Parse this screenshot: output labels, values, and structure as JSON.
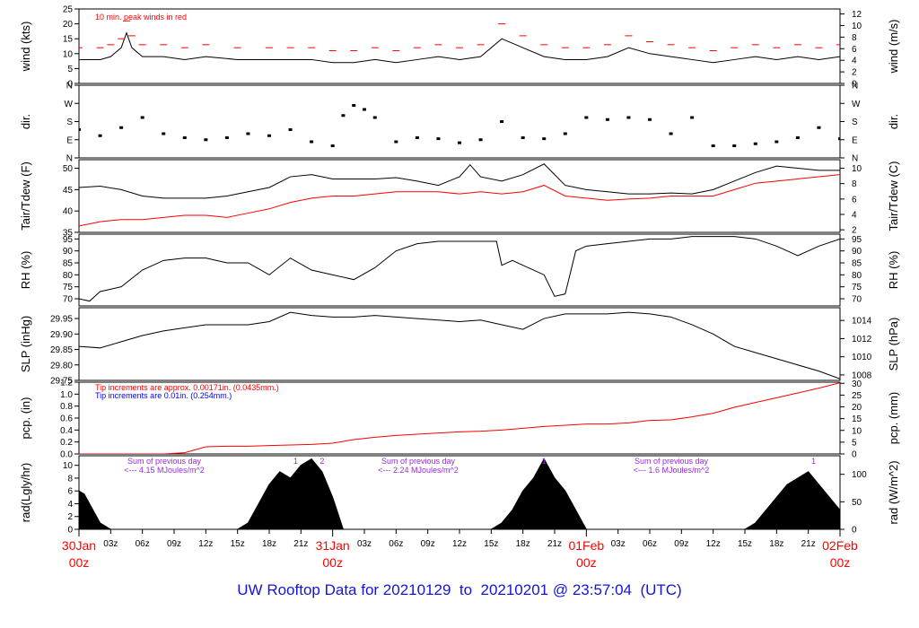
{
  "title": "UW Rooftop Data for 20210129  to  20210201 @ 23:57:04  (UTC)",
  "colors": {
    "main": "#000000",
    "red": "#ff0000",
    "blue": "#0000ff",
    "purple": "#9a2bd8",
    "title": "#1414d8"
  },
  "chart_data": [
    {
      "id": "wind",
      "type": "line",
      "ylabel": "wind (kts)",
      "ylabel_right": "wind (m/s)",
      "ylim": [
        0,
        25
      ],
      "yticks": [
        0,
        5,
        10,
        15,
        20,
        25
      ],
      "ylim_right": [
        0,
        12.86
      ],
      "yticks_right": [
        0,
        2,
        4,
        6,
        8,
        10,
        12
      ],
      "annotations": [
        {
          "text": "10 min. peak winds in red",
          "color": "#ff0000"
        }
      ],
      "series": [
        {
          "color": "#000000",
          "x": [
            0,
            2,
            3,
            4,
            4.5,
            5,
            6,
            8,
            10,
            12,
            15,
            18,
            20,
            22,
            24,
            26,
            28,
            30,
            32,
            34,
            36,
            38,
            40,
            42,
            44,
            46,
            48,
            50,
            52,
            54,
            56,
            58,
            60,
            62,
            64,
            66,
            68,
            70,
            72
          ],
          "y": [
            8,
            8,
            9,
            12,
            17,
            12,
            9,
            9,
            8,
            9,
            8,
            8,
            8,
            8,
            7,
            7,
            8,
            7,
            8,
            9,
            8,
            9,
            15,
            12,
            9,
            8,
            8,
            9,
            12,
            10,
            9,
            8,
            7,
            8,
            9,
            8,
            9,
            8,
            9
          ]
        },
        {
          "color": "#ff0000",
          "style": "dashes",
          "x": [
            0,
            2,
            3,
            4,
            4.5,
            5,
            6,
            8,
            10,
            12,
            15,
            18,
            20,
            22,
            24,
            26,
            28,
            30,
            32,
            34,
            36,
            38,
            40,
            42,
            44,
            46,
            48,
            50,
            52,
            54,
            56,
            58,
            60,
            62,
            64,
            66,
            68,
            70,
            72
          ],
          "y": [
            12,
            12,
            13,
            15,
            21,
            16,
            13,
            13,
            12,
            13,
            12,
            12,
            12,
            12,
            11,
            11,
            12,
            11,
            12,
            13,
            12,
            13,
            20,
            16,
            13,
            12,
            12,
            13,
            16,
            14,
            13,
            12,
            11,
            12,
            13,
            12,
            13,
            12,
            13
          ]
        }
      ]
    },
    {
      "id": "dir",
      "type": "scatter",
      "ylabel": "dir.",
      "ylabel_right": "dir.",
      "ylim": [
        0,
        360
      ],
      "yticks": [
        0,
        90,
        180,
        270,
        360
      ],
      "yticklabels": [
        "N",
        "E",
        "S",
        "W",
        "N"
      ],
      "series": [
        {
          "color": "#000000",
          "x": [
            0,
            2,
            4,
            6,
            8,
            10,
            12,
            14,
            16,
            18,
            20,
            22,
            24,
            25,
            26,
            27,
            28,
            30,
            32,
            34,
            36,
            38,
            40,
            42,
            44,
            46,
            48,
            50,
            52,
            54,
            56,
            58,
            60,
            62,
            64,
            66,
            68,
            70,
            72
          ],
          "y": [
            140,
            110,
            150,
            200,
            120,
            100,
            90,
            100,
            120,
            110,
            140,
            80,
            60,
            210,
            260,
            240,
            200,
            80,
            100,
            95,
            75,
            90,
            180,
            100,
            95,
            120,
            200,
            190,
            200,
            190,
            120,
            200,
            60,
            60,
            70,
            80,
            100,
            150,
            95
          ]
        }
      ]
    },
    {
      "id": "temp",
      "type": "line",
      "ylabel": "Tair/Tdew (F)",
      "ylabel_right": "Tair/Tdew (C)",
      "ylim": [
        35,
        52
      ],
      "yticks": [
        35,
        40,
        45,
        50
      ],
      "ylim_right": [
        1.67,
        11.11
      ],
      "yticks_right": [
        2,
        4,
        6,
        8,
        10
      ],
      "series": [
        {
          "color": "#000000",
          "x": [
            0,
            2,
            4,
            6,
            8,
            10,
            12,
            14,
            16,
            18,
            20,
            22,
            24,
            26,
            28,
            30,
            32,
            34,
            36,
            37,
            38,
            40,
            42,
            44,
            46,
            48,
            50,
            52,
            54,
            56,
            58,
            60,
            62,
            64,
            66,
            68,
            70,
            72
          ],
          "y": [
            45.5,
            45.8,
            45,
            43.5,
            43,
            43,
            43,
            43.5,
            44.5,
            45.5,
            48,
            48.5,
            47.5,
            47.5,
            47.5,
            47.8,
            47,
            46,
            48,
            50.8,
            48,
            47,
            48.5,
            51,
            46,
            45,
            44.5,
            44,
            44,
            44.2,
            44,
            45,
            47,
            49,
            50.5,
            50,
            49.5,
            49.5
          ]
        },
        {
          "color": "#ff0000",
          "x": [
            0,
            2,
            4,
            6,
            8,
            10,
            12,
            14,
            16,
            18,
            20,
            22,
            24,
            26,
            28,
            30,
            32,
            34,
            36,
            38,
            40,
            42,
            44,
            46,
            48,
            50,
            52,
            54,
            56,
            58,
            60,
            62,
            64,
            66,
            68,
            70,
            72
          ],
          "y": [
            36.5,
            37.5,
            38,
            38,
            38.5,
            39,
            39,
            38.5,
            39.5,
            40.5,
            42,
            43,
            43.5,
            43.5,
            44,
            44.5,
            44.5,
            44.5,
            44,
            44.5,
            44,
            44.5,
            46,
            43.5,
            43,
            42.5,
            42.8,
            43,
            43.5,
            43.5,
            43.5,
            45,
            46.5,
            47,
            47.5,
            48,
            48.5
          ]
        }
      ]
    },
    {
      "id": "rh",
      "type": "line",
      "ylabel": "RH (%)",
      "ylabel_right": "RH (%)",
      "ylim": [
        67,
        97
      ],
      "yticks": [
        70,
        75,
        80,
        85,
        90,
        95
      ],
      "series": [
        {
          "color": "#000000",
          "x": [
            0,
            1,
            2,
            3,
            4,
            6,
            8,
            10,
            12,
            14,
            16,
            18,
            20,
            22,
            24,
            26,
            28,
            30,
            32,
            34,
            36,
            38,
            39.5,
            40,
            41,
            42,
            44,
            45,
            46,
            47,
            48,
            50,
            52,
            54,
            56,
            58,
            60,
            62,
            64,
            66,
            68,
            70,
            72
          ],
          "y": [
            70,
            69,
            73,
            74,
            75,
            82,
            86,
            87,
            87,
            85,
            85,
            80,
            87,
            82,
            80,
            78,
            83,
            90,
            93,
            94,
            94,
            94,
            94,
            84,
            86,
            84,
            80,
            71,
            72,
            90,
            92,
            93,
            94,
            95,
            95,
            96,
            96,
            96,
            95,
            92,
            88,
            92,
            95
          ]
        }
      ]
    },
    {
      "id": "slp",
      "type": "line",
      "ylabel": "SLP (inHg)",
      "ylabel_right": "SLP (hPa)",
      "ylim": [
        29.75,
        29.985
      ],
      "yticks": [
        29.75,
        29.8,
        29.85,
        29.9,
        29.95
      ],
      "yticklabels": [
        "29.75",
        "29.80",
        "29.85",
        "29.90",
        "29.95"
      ],
      "ylim_right": [
        1007.4,
        1015.4
      ],
      "yticks_right": [
        1008,
        1010,
        1012,
        1014
      ],
      "series": [
        {
          "color": "#000000",
          "x": [
            0,
            2,
            4,
            6,
            8,
            10,
            12,
            14,
            16,
            18,
            20,
            22,
            24,
            26,
            28,
            30,
            32,
            34,
            36,
            38,
            40,
            42,
            44,
            46,
            48,
            50,
            52,
            54,
            56,
            58,
            60,
            62,
            64,
            66,
            68,
            70,
            72
          ],
          "y": [
            29.86,
            29.855,
            29.875,
            29.895,
            29.91,
            29.92,
            29.93,
            29.93,
            29.93,
            29.94,
            29.97,
            29.96,
            29.955,
            29.955,
            29.96,
            29.955,
            29.95,
            29.945,
            29.94,
            29.945,
            29.93,
            29.915,
            29.95,
            29.965,
            29.965,
            29.965,
            29.97,
            29.965,
            29.955,
            29.93,
            29.9,
            29.86,
            29.84,
            29.82,
            29.8,
            29.78,
            29.755
          ]
        }
      ]
    },
    {
      "id": "pcp",
      "type": "line",
      "ylabel": "pcp. (in)",
      "ylabel_right": "pcp. (mm)",
      "ylim": [
        0,
        1.2
      ],
      "yticks": [
        0,
        0.2,
        0.4,
        0.6,
        0.8,
        1.0,
        1.2
      ],
      "yticklabels": [
        "0.0",
        "0.2",
        "0.4",
        "0.6",
        "0.8",
        "1.0",
        "1.2"
      ],
      "ylim_right": [
        0,
        30.48
      ],
      "yticks_right": [
        0,
        5,
        10,
        15,
        20,
        25,
        30
      ],
      "annotations": [
        {
          "text": "Tip increments are approx. 0.00171in. (0.0435mm.)",
          "color": "#ff0000"
        },
        {
          "text": "Tip increments are 0.01in. (0.254mm.)",
          "color": "#0000ff"
        }
      ],
      "series": [
        {
          "color": "#ff0000",
          "x": [
            0,
            4,
            8,
            10,
            12,
            14,
            16,
            18,
            20,
            22,
            24,
            26,
            28,
            30,
            32,
            34,
            36,
            38,
            40,
            42,
            44,
            46,
            48,
            50,
            52,
            54,
            56,
            58,
            60,
            62,
            64,
            66,
            68,
            70,
            72
          ],
          "y": [
            0,
            0,
            0,
            0.02,
            0.12,
            0.13,
            0.13,
            0.14,
            0.15,
            0.16,
            0.18,
            0.24,
            0.28,
            0.31,
            0.33,
            0.35,
            0.37,
            0.38,
            0.4,
            0.43,
            0.46,
            0.48,
            0.5,
            0.5,
            0.52,
            0.56,
            0.57,
            0.62,
            0.68,
            0.78,
            0.86,
            0.94,
            1.02,
            1.1,
            1.19
          ]
        }
      ]
    },
    {
      "id": "rad",
      "type": "area",
      "ylabel": "rad(Lgly/hr)",
      "ylabel_right": "rad (W/m^2)",
      "ylim": [
        0,
        11.5
      ],
      "yticks": [
        0,
        2,
        4,
        6,
        8,
        10
      ],
      "ylim_right": [
        0,
        133.7
      ],
      "yticks_right": [
        0,
        50,
        100
      ],
      "annotations": [
        {
          "text": "Sum of previous day",
          "color": "#9a2bd8"
        },
        {
          "text": "<--- 4.15 MJoules/m^2",
          "color": "#9a2bd8"
        },
        {
          "text": "Sum of previous day",
          "color": "#9a2bd8"
        },
        {
          "text": "<--- 2.24 MJoules/m^2",
          "color": "#9a2bd8"
        },
        {
          "text": "Sum of previous day",
          "color": "#9a2bd8"
        },
        {
          "text": "<--- 1.6 MJoules/m^2",
          "color": "#9a2bd8"
        },
        {
          "text": "1",
          "color": "#9a2bd8"
        },
        {
          "text": "2",
          "color": "#9a2bd8"
        },
        {
          "text": "1",
          "color": "#9a2bd8"
        },
        {
          "text": "1",
          "color": "#9a2bd8"
        }
      ],
      "series": [
        {
          "color": "#000000",
          "x": [
            0,
            0.5,
            1,
            2,
            3,
            4,
            15,
            16,
            17,
            18,
            19,
            20,
            21,
            22,
            23,
            24,
            25,
            39,
            40,
            41,
            42,
            43,
            44,
            45,
            46,
            47,
            48,
            63,
            64,
            65,
            66,
            67,
            68,
            69,
            70,
            71,
            72
          ],
          "y": [
            6,
            5.5,
            4,
            1,
            0,
            0,
            0,
            1,
            4,
            7,
            9,
            8,
            10,
            11,
            9,
            5,
            0,
            0,
            1,
            3,
            6,
            8,
            11,
            8,
            6,
            3,
            0,
            0,
            1,
            3,
            5,
            7,
            8,
            9,
            7,
            5,
            3
          ]
        }
      ]
    }
  ],
  "xaxis": {
    "range_hours": [
      0,
      72
    ],
    "tick_labels": [
      "03z",
      "06z",
      "09z",
      "12z",
      "15z",
      "18z",
      "21z",
      "03z",
      "06z",
      "09z",
      "12z",
      "15z",
      "18z",
      "21z",
      "03z",
      "06z",
      "09z",
      "12z",
      "15z",
      "18z",
      "21z"
    ],
    "day_labels": [
      {
        "date": "30Jan",
        "time": "00z"
      },
      {
        "date": "31Jan",
        "time": "00z"
      },
      {
        "date": "01Feb",
        "time": "00z"
      },
      {
        "date": "02Feb",
        "time": "00z"
      }
    ]
  }
}
